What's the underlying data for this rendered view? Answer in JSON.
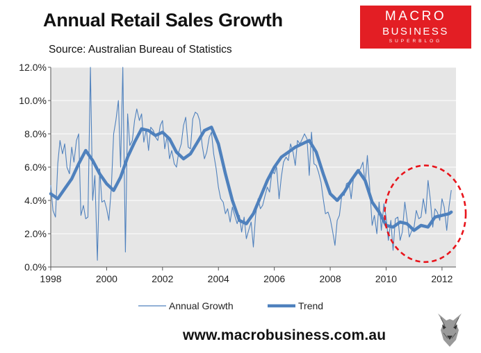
{
  "header": {
    "title": "Annual Retail Sales Growth",
    "subtitle": "Source: Australian Bureau of Statistics"
  },
  "logo": {
    "line1": "MACRO",
    "line2": "BUSINESS",
    "line3": "SUPERBLOG",
    "color": "#e31e24"
  },
  "footer": {
    "website": "www.macrobusiness.com.au",
    "mascot_icon": "wolf-icon"
  },
  "colors": {
    "series": "#4f81bd",
    "plot_background": "#e6e6e6",
    "gridline": "#ffffff",
    "highlight_circle": "#e8141b"
  },
  "chart_data": {
    "type": "line",
    "title": "Annual Retail Sales Growth",
    "xlim": [
      1998,
      2012.5
    ],
    "ylim": [
      0,
      12
    ],
    "x_ticks": [
      "1998",
      "2000",
      "2002",
      "2004",
      "2006",
      "2008",
      "2010",
      "2012"
    ],
    "y_ticks": [
      "0.0%",
      "2.0%",
      "4.0%",
      "6.0%",
      "8.0%",
      "10.0%",
      "12.0%"
    ],
    "grid": true,
    "legend": "bottom",
    "annotations": [
      {
        "type": "dashed-circle",
        "x": 2011.4,
        "y": 3.2,
        "rx_years": 1.45,
        "ry_pct": 2.9
      }
    ],
    "series": [
      {
        "name": "Annual Growth",
        "style": "thin",
        "x": [
          1998.0,
          1998.08,
          1998.17,
          1998.25,
          1998.33,
          1998.42,
          1998.5,
          1998.58,
          1998.67,
          1998.75,
          1998.83,
          1998.92,
          1999.0,
          1999.08,
          1999.17,
          1999.25,
          1999.33,
          1999.42,
          1999.5,
          1999.58,
          1999.67,
          1999.75,
          1999.83,
          1999.92,
          2000.0,
          2000.08,
          2000.17,
          2000.25,
          2000.33,
          2000.42,
          2000.5,
          2000.58,
          2000.67,
          2000.75,
          2000.83,
          2000.92,
          2001.0,
          2001.08,
          2001.17,
          2001.25,
          2001.33,
          2001.42,
          2001.5,
          2001.58,
          2001.67,
          2001.75,
          2001.83,
          2001.92,
          2002.0,
          2002.08,
          2002.17,
          2002.25,
          2002.33,
          2002.42,
          2002.5,
          2002.58,
          2002.67,
          2002.75,
          2002.83,
          2002.92,
          2003.0,
          2003.08,
          2003.17,
          2003.25,
          2003.33,
          2003.42,
          2003.5,
          2003.58,
          2003.67,
          2003.75,
          2003.83,
          2003.92,
          2004.0,
          2004.08,
          2004.17,
          2004.25,
          2004.33,
          2004.42,
          2004.5,
          2004.58,
          2004.67,
          2004.75,
          2004.83,
          2004.92,
          2005.0,
          2005.08,
          2005.17,
          2005.25,
          2005.33,
          2005.42,
          2005.5,
          2005.58,
          2005.67,
          2005.75,
          2005.83,
          2005.92,
          2006.0,
          2006.08,
          2006.17,
          2006.25,
          2006.33,
          2006.42,
          2006.5,
          2006.58,
          2006.67,
          2006.75,
          2006.83,
          2006.92,
          2007.0,
          2007.08,
          2007.17,
          2007.25,
          2007.33,
          2007.42,
          2007.5,
          2007.58,
          2007.67,
          2007.75,
          2007.83,
          2007.92,
          2008.0,
          2008.08,
          2008.17,
          2008.25,
          2008.33,
          2008.42,
          2008.5,
          2008.58,
          2008.67,
          2008.75,
          2008.83,
          2008.92,
          2009.0,
          2009.08,
          2009.17,
          2009.25,
          2009.33,
          2009.42,
          2009.5,
          2009.58,
          2009.67,
          2009.75,
          2009.83,
          2009.92,
          2010.0,
          2010.08,
          2010.17,
          2010.25,
          2010.33,
          2010.42,
          2010.5,
          2010.58,
          2010.67,
          2010.75,
          2010.83,
          2010.92,
          2011.0,
          2011.08,
          2011.17,
          2011.25,
          2011.33,
          2011.42,
          2011.5,
          2011.58,
          2011.67,
          2011.75,
          2011.83,
          2011.92,
          2012.0,
          2012.08,
          2012.17,
          2012.25,
          2012.33
        ],
        "y": [
          4.9,
          3.4,
          3.0,
          6.2,
          7.6,
          6.8,
          7.4,
          6.0,
          5.6,
          7.2,
          6.3,
          7.6,
          8.0,
          3.1,
          3.7,
          2.9,
          3.0,
          12.0,
          4.0,
          5.5,
          0.4,
          5.9,
          3.9,
          4.0,
          3.5,
          2.8,
          4.8,
          8.0,
          8.8,
          10.0,
          6.0,
          12.5,
          0.9,
          9.2,
          7.3,
          7.6,
          8.8,
          9.5,
          8.8,
          9.2,
          7.5,
          8.3,
          7.0,
          8.4,
          8.2,
          7.8,
          7.6,
          8.5,
          8.8,
          7.1,
          7.9,
          6.5,
          7.0,
          6.2,
          6.0,
          6.9,
          7.4,
          8.5,
          9.0,
          7.2,
          7.1,
          8.9,
          9.3,
          9.2,
          8.8,
          7.3,
          6.5,
          6.9,
          7.8,
          8.1,
          6.8,
          5.9,
          4.8,
          4.1,
          3.9,
          3.2,
          3.5,
          2.7,
          3.6,
          3.1,
          2.6,
          3.1,
          2.1,
          3.0,
          1.7,
          2.2,
          2.7,
          1.2,
          3.1,
          4.1,
          3.5,
          3.7,
          4.3,
          4.8,
          4.5,
          5.8,
          5.6,
          6.0,
          4.1,
          5.4,
          6.3,
          6.6,
          6.4,
          7.4,
          6.9,
          6.1,
          7.6,
          7.4,
          7.7,
          8.0,
          7.7,
          5.5,
          8.1,
          6.2,
          6.1,
          5.7,
          5.1,
          4.1,
          3.2,
          3.3,
          2.9,
          2.2,
          1.3,
          2.8,
          3.1,
          4.4,
          4.3,
          5.0,
          5.1,
          4.1,
          5.3,
          5.7,
          5.8,
          5.9,
          6.3,
          5.0,
          6.7,
          4.6,
          2.5,
          3.1,
          2.0,
          3.9,
          2.2,
          3.8,
          3.0,
          1.6,
          2.8,
          1.0,
          2.9,
          3.0,
          1.6,
          2.1,
          3.9,
          2.9,
          1.8,
          2.2,
          2.4,
          3.4,
          2.9,
          3.0,
          4.1,
          3.2,
          5.2,
          4.1,
          2.4,
          3.5,
          3.3,
          2.8,
          4.1,
          3.6,
          2.2,
          3.6,
          4.6
        ]
      },
      {
        "name": "Trend",
        "style": "thick",
        "x": [
          1998.0,
          1998.25,
          1998.5,
          1998.75,
          1999.0,
          1999.25,
          1999.5,
          1999.75,
          2000.0,
          2000.25,
          2000.5,
          2000.75,
          2001.0,
          2001.25,
          2001.5,
          2001.75,
          2002.0,
          2002.25,
          2002.5,
          2002.75,
          2003.0,
          2003.25,
          2003.5,
          2003.75,
          2004.0,
          2004.25,
          2004.5,
          2004.75,
          2005.0,
          2005.25,
          2005.5,
          2005.75,
          2006.0,
          2006.25,
          2006.5,
          2006.75,
          2007.0,
          2007.25,
          2007.5,
          2007.75,
          2008.0,
          2008.25,
          2008.5,
          2008.75,
          2009.0,
          2009.25,
          2009.5,
          2009.75,
          2010.0,
          2010.25,
          2010.5,
          2010.75,
          2011.0,
          2011.25,
          2011.5,
          2011.75,
          2012.0,
          2012.25,
          2012.33
        ],
        "y": [
          4.4,
          4.1,
          4.7,
          5.3,
          6.2,
          7.0,
          6.4,
          5.6,
          5.0,
          4.6,
          5.4,
          6.6,
          7.5,
          8.3,
          8.2,
          7.9,
          8.1,
          7.7,
          6.9,
          6.5,
          6.8,
          7.5,
          8.2,
          8.4,
          7.4,
          5.6,
          4.0,
          2.8,
          2.6,
          3.2,
          4.2,
          5.2,
          6.0,
          6.6,
          6.9,
          7.2,
          7.4,
          7.6,
          6.9,
          5.6,
          4.4,
          4.0,
          4.5,
          5.2,
          5.8,
          5.2,
          3.9,
          3.3,
          2.5,
          2.4,
          2.7,
          2.6,
          2.2,
          2.5,
          2.4,
          3.0,
          3.1,
          3.2,
          3.3
        ]
      }
    ]
  }
}
